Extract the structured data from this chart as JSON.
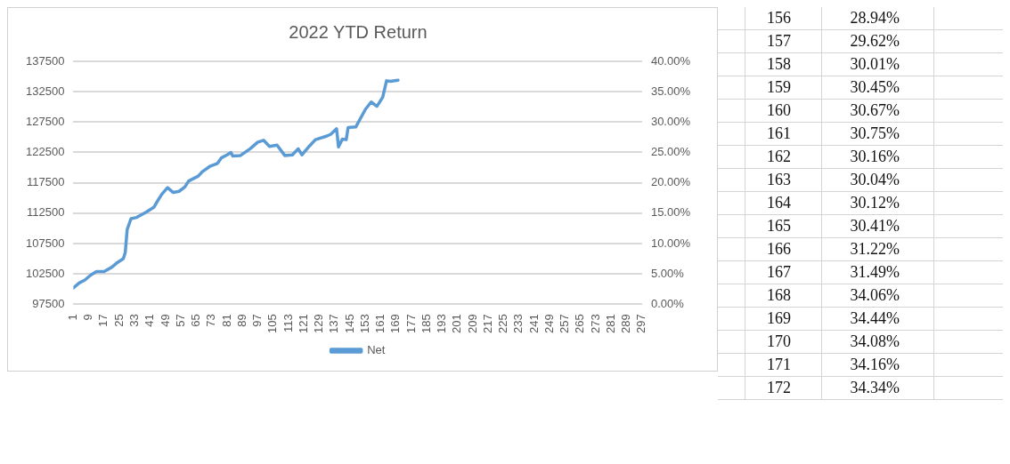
{
  "chart_data": [
    {
      "type": "line",
      "title": "2022 YTD Return",
      "series": [
        {
          "name": "Net",
          "color": "#5b9bd5",
          "x": [
            1,
            4,
            7,
            10,
            13,
            17,
            21,
            24,
            27,
            28,
            29,
            31,
            34,
            39,
            43,
            45,
            47,
            50,
            53,
            56,
            59,
            61,
            66,
            68,
            72,
            76,
            78,
            81,
            83,
            84,
            88,
            93,
            97,
            100,
            103,
            107,
            111,
            115,
            118,
            120,
            124,
            127,
            133,
            135,
            138,
            139,
            141,
            143,
            144,
            148,
            153,
            156,
            159,
            162,
            164,
            166,
            170
          ],
          "values": [
            100200,
            101000,
            101500,
            102300,
            102900,
            102900,
            103600,
            104400,
            105000,
            106000,
            109800,
            111600,
            111800,
            112700,
            113500,
            114600,
            115600,
            116700,
            115900,
            116100,
            116800,
            117800,
            118600,
            119300,
            120200,
            120700,
            121600,
            122100,
            122500,
            121900,
            122000,
            123100,
            124200,
            124500,
            123500,
            123700,
            122000,
            122100,
            123100,
            122100,
            123600,
            124600,
            125200,
            125500,
            126400,
            123400,
            124700,
            124600,
            126600,
            126700,
            129600,
            130800,
            130100,
            131600,
            134300,
            134200,
            134400
          ]
        }
      ],
      "xlim": [
        1,
        297
      ],
      "xticks": [
        1,
        9,
        17,
        25,
        33,
        41,
        49,
        57,
        65,
        73,
        81,
        89,
        97,
        105,
        113,
        121,
        129,
        137,
        145,
        153,
        161,
        169,
        177,
        185,
        193,
        201,
        209,
        217,
        225,
        233,
        241,
        249,
        257,
        265,
        273,
        281,
        289,
        297
      ],
      "ylim": [
        97500,
        137500
      ],
      "yticks": [
        97500,
        102500,
        107500,
        112500,
        117500,
        122500,
        127500,
        132500,
        137500
      ],
      "y2lim": [
        0,
        40
      ],
      "y2ticks": [
        {
          "value": 0,
          "label": "0.00%"
        },
        {
          "value": 5,
          "label": "5.00%"
        },
        {
          "value": 10,
          "label": "10.00%"
        },
        {
          "value": 15,
          "label": "15.00%"
        },
        {
          "value": 20,
          "label": "20.00%"
        },
        {
          "value": 25,
          "label": "25.00%"
        },
        {
          "value": 30,
          "label": "30.00%"
        },
        {
          "value": 35,
          "label": "35.00%"
        },
        {
          "value": 40,
          "label": "40.00%"
        }
      ],
      "grid": "y",
      "legend": "bottom",
      "marker": "none",
      "line_style": "solid"
    },
    {
      "type": "other",
      "annotations": [
        "156 28.94%",
        "157 29.62%",
        "158 30.01%",
        "159 30.45%",
        "160 30.67%",
        "161 30.75%",
        "162 30.16%",
        "163 30.04%",
        "164 30.12%",
        "165 30.41%",
        "166 31.22%",
        "167 31.49%",
        "168 34.06%",
        "169 34.44%",
        "170 34.08%",
        "171 34.16%",
        "172 34.34%"
      ]
    }
  ]
}
